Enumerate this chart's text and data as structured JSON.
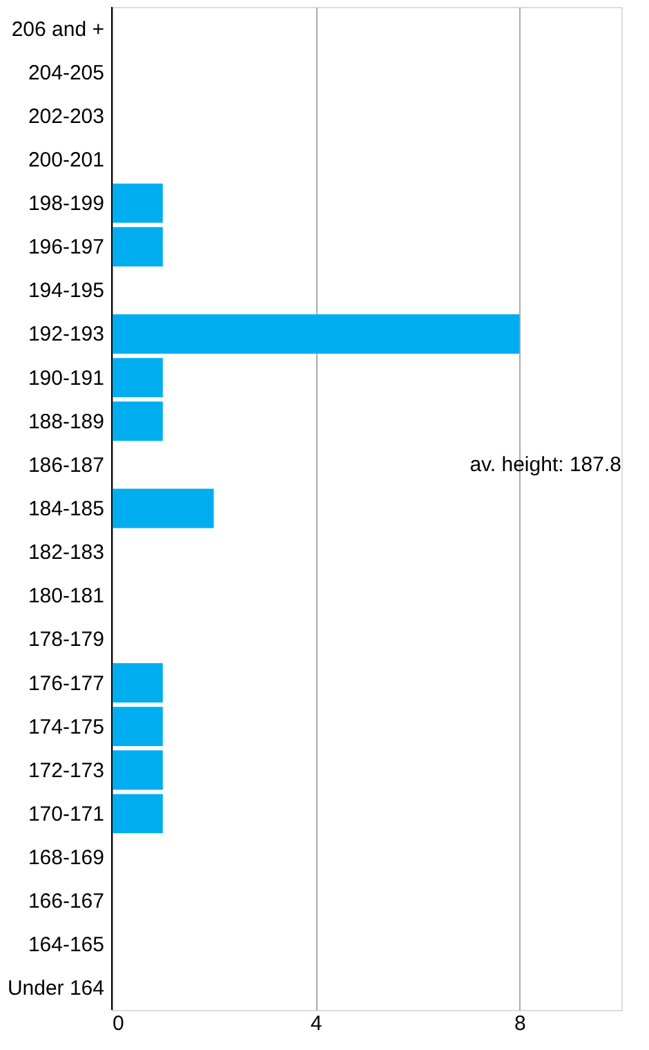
{
  "chart_data": {
    "type": "bar",
    "orientation": "horizontal",
    "categories": [
      "206 and +",
      "204-205",
      "202-203",
      "200-201",
      "198-199",
      "196-197",
      "194-195",
      "192-193",
      "190-191",
      "188-189",
      "186-187",
      "184-185",
      "182-183",
      "180-181",
      "178-179",
      "176-177",
      "174-175",
      "172-173",
      "170-171",
      "168-169",
      "166-167",
      "164-165",
      "Under 164"
    ],
    "values": [
      0,
      0,
      0,
      0,
      1,
      1,
      0,
      8,
      1,
      1,
      0,
      2,
      0,
      0,
      0,
      1,
      1,
      1,
      1,
      0,
      0,
      0,
      0
    ],
    "color": "#00aeef",
    "xlim": [
      0,
      10
    ],
    "xticks": [
      0,
      4,
      8
    ],
    "grid": "x",
    "annotations": [
      "av. height: 187.8"
    ]
  }
}
